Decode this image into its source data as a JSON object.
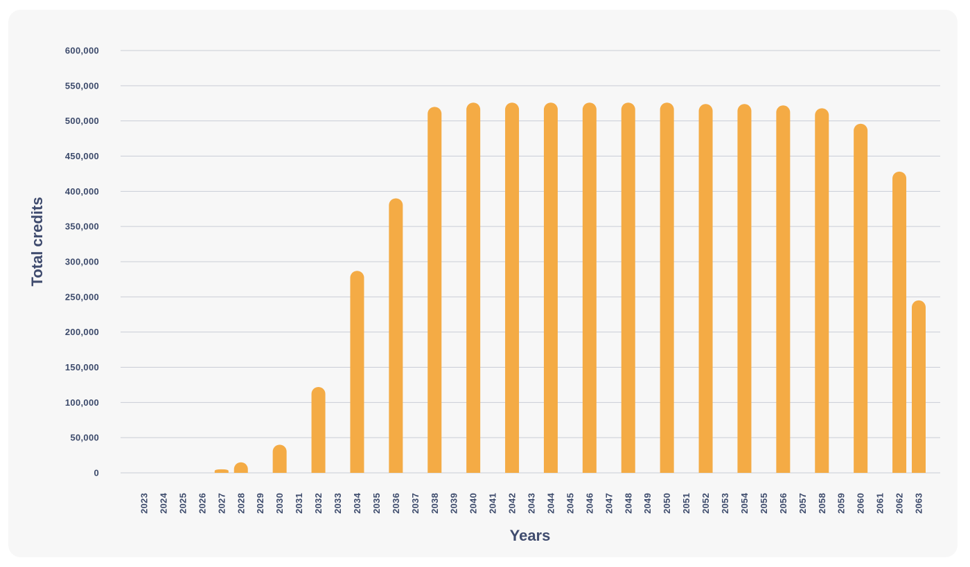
{
  "chart_data": {
    "type": "bar",
    "title": "",
    "xlabel": "Years",
    "ylabel": "Total credits",
    "ylim": [
      0,
      600000
    ],
    "yticks": [
      "0",
      "50,000",
      "100,000",
      "150,000",
      "200,000",
      "250,000",
      "300,000",
      "350,000",
      "400,000",
      "450,000",
      "500,000",
      "550,000",
      "600,000"
    ],
    "ytick_values": [
      0,
      50000,
      100000,
      150000,
      200000,
      250000,
      300000,
      350000,
      400000,
      450000,
      500000,
      550000,
      600000
    ],
    "categories": [
      "2023",
      "2024",
      "2025",
      "2026",
      "2027",
      "2028",
      "2029",
      "2030",
      "2031",
      "2032",
      "2033",
      "2034",
      "2035",
      "2036",
      "2037",
      "2038",
      "2039",
      "2040",
      "2041",
      "2042",
      "2043",
      "2044",
      "2045",
      "2046",
      "2047",
      "2048",
      "2049",
      "2050",
      "2051",
      "2052",
      "2053",
      "2054",
      "2055",
      "2056",
      "2057",
      "2058",
      "2059",
      "2060",
      "2061",
      "2062",
      "2063"
    ],
    "values": [
      0,
      0,
      0,
      0,
      5000,
      15000,
      0,
      40000,
      0,
      122000,
      0,
      287000,
      0,
      390000,
      0,
      520000,
      0,
      526000,
      0,
      526000,
      0,
      526000,
      0,
      526000,
      0,
      526000,
      0,
      526000,
      0,
      524000,
      0,
      524000,
      0,
      522000,
      0,
      518000,
      0,
      496000,
      0,
      428000,
      245000
    ],
    "grid": true,
    "bar_color": "#f4ab45",
    "grid_color": "#c9ccd6",
    "text_color": "#3c4a6b"
  }
}
